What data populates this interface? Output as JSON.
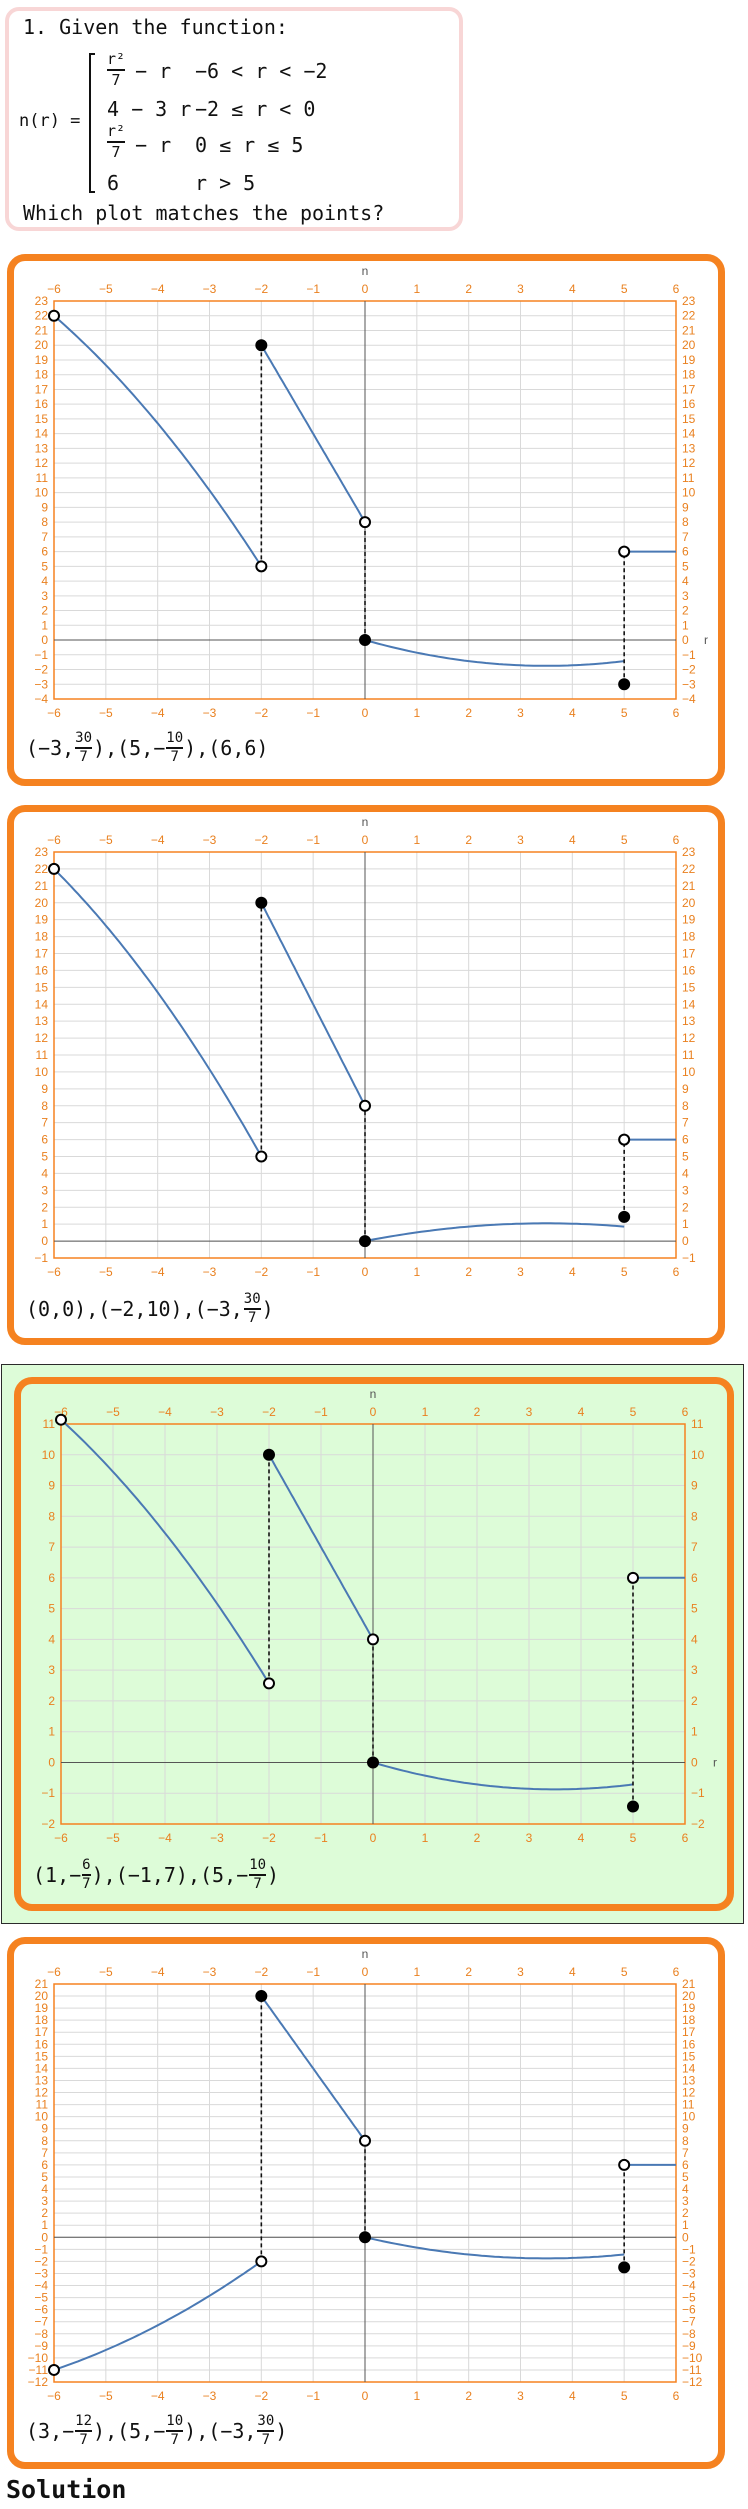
{
  "question": {
    "title": "1. Given the function:",
    "fn_label": "n(r) =",
    "pieces": [
      {
        "expr_num": "r²",
        "expr_den": "7",
        "expr_tail": "− r",
        "cond": "−6 < r < −2"
      },
      {
        "expr": "4 − 3 r",
        "cond": "−2 ≤ r < 0"
      },
      {
        "expr_num": "r²",
        "expr_den": "7",
        "expr_tail": "− r",
        "cond": "0 ≤ r ≤ 5"
      },
      {
        "expr": "6",
        "cond": "r > 5"
      }
    ],
    "prompt": "Which plot matches the points?"
  },
  "options": [
    {
      "id": "A",
      "selected": false,
      "chart_data": {
        "type": "line",
        "title": "",
        "xlabel": "r",
        "ylabel": "n",
        "xlim": [
          -6,
          6
        ],
        "ylim": [
          -4,
          23
        ],
        "xticks": [
          -6,
          -5,
          -4,
          -3,
          -2,
          -1,
          0,
          1,
          2,
          3,
          4,
          5,
          6
        ],
        "yticks": [
          -4,
          -3,
          -2,
          -1,
          0,
          1,
          2,
          3,
          4,
          5,
          6,
          7,
          8,
          9,
          10,
          11,
          12,
          13,
          14,
          15,
          16,
          17,
          18,
          19,
          20,
          21,
          22,
          23
        ],
        "grid": true,
        "segments": [
          {
            "fn": "quad_a",
            "from": -6,
            "to": -2
          },
          {
            "fn": "lin_a",
            "from": -2,
            "to": 0
          },
          {
            "fn": "quad_b",
            "from": 0,
            "to": 5
          },
          {
            "fn": "const6",
            "from": 5,
            "to": 6
          }
        ],
        "points": [
          {
            "x": -6,
            "y": 22,
            "filled": false
          },
          {
            "x": -2,
            "y": 5,
            "filled": false
          },
          {
            "x": -2,
            "y": 20,
            "filled": true
          },
          {
            "x": 0,
            "y": 8,
            "filled": false
          },
          {
            "x": 0,
            "y": 0,
            "filled": true
          },
          {
            "x": 5,
            "y": -3,
            "filled": true
          },
          {
            "x": 5,
            "y": 6,
            "filled": false
          }
        ],
        "jumps": [
          {
            "x": -2,
            "y1": 5,
            "y2": 20
          },
          {
            "x": 0,
            "y1": 0,
            "y2": 8
          },
          {
            "x": 5,
            "y1": -3,
            "y2": 6
          }
        ]
      },
      "answer": [
        {
          "a": "−3",
          "num": "30",
          "den": "7"
        },
        {
          "a": "5",
          "neg": true,
          "num": "10",
          "den": "7"
        },
        {
          "a": "6",
          "b": "6"
        }
      ]
    },
    {
      "id": "B",
      "selected": false,
      "chart_data": {
        "type": "line",
        "title": "",
        "xlabel": "",
        "ylabel": "n",
        "xlim": [
          -6,
          6
        ],
        "ylim": [
          -1,
          23
        ],
        "xticks": [
          -6,
          -5,
          -4,
          -3,
          -2,
          -1,
          0,
          1,
          2,
          3,
          4,
          5,
          6
        ],
        "yticks": [
          -1,
          0,
          1,
          2,
          3,
          4,
          5,
          6,
          7,
          8,
          9,
          10,
          11,
          12,
          13,
          14,
          15,
          16,
          17,
          18,
          19,
          20,
          21,
          22,
          23
        ],
        "grid": true,
        "segments": [
          {
            "fn": "quad_a",
            "from": -6,
            "to": -2
          },
          {
            "fn": "lin_a",
            "from": -2,
            "to": 0
          },
          {
            "fn": "quad_b_neg",
            "from": 0,
            "to": 5
          },
          {
            "fn": "const6",
            "from": 5,
            "to": 6
          }
        ],
        "points": [
          {
            "x": -6,
            "y": 22,
            "filled": false
          },
          {
            "x": -2,
            "y": 5,
            "filled": false
          },
          {
            "x": -2,
            "y": 20,
            "filled": true
          },
          {
            "x": 0,
            "y": 8,
            "filled": false
          },
          {
            "x": 0,
            "y": 0,
            "filled": true
          },
          {
            "x": 5,
            "y": 1.43,
            "filled": true
          },
          {
            "x": 5,
            "y": 6,
            "filled": false
          }
        ],
        "jumps": [
          {
            "x": -2,
            "y1": 5,
            "y2": 20
          },
          {
            "x": 0,
            "y1": 0,
            "y2": 8
          },
          {
            "x": 5,
            "y1": 1.43,
            "y2": 6
          }
        ]
      },
      "answer": [
        {
          "a": "0",
          "b": "0"
        },
        {
          "a": "−2",
          "b": "10"
        },
        {
          "a": "−3",
          "num": "30",
          "den": "7"
        }
      ]
    },
    {
      "id": "C",
      "selected": true,
      "chart_data": {
        "type": "line",
        "title": "",
        "xlabel": "r",
        "ylabel": "n",
        "xlim": [
          -6,
          6
        ],
        "ylim": [
          -2,
          11
        ],
        "xticks": [
          -6,
          -5,
          -4,
          -3,
          -2,
          -1,
          0,
          1,
          2,
          3,
          4,
          5,
          6
        ],
        "yticks": [
          -2,
          -1,
          0,
          1,
          2,
          3,
          4,
          5,
          6,
          7,
          8,
          9,
          10,
          11
        ],
        "grid": true,
        "segments": [
          {
            "fn": "quad_c",
            "from": -6,
            "to": -2
          },
          {
            "fn": "lin_c",
            "from": -2,
            "to": 0
          },
          {
            "fn": "quad_d",
            "from": 0,
            "to": 5
          },
          {
            "fn": "const6",
            "from": 5,
            "to": 6
          }
        ],
        "points": [
          {
            "x": -6,
            "y": 11.14,
            "filled": false
          },
          {
            "x": -2,
            "y": 2.57,
            "filled": false
          },
          {
            "x": -2,
            "y": 10,
            "filled": true
          },
          {
            "x": 0,
            "y": 4,
            "filled": false
          },
          {
            "x": 0,
            "y": 0,
            "filled": true
          },
          {
            "x": 5,
            "y": -1.43,
            "filled": true
          },
          {
            "x": 5,
            "y": 6,
            "filled": false
          }
        ],
        "jumps": [
          {
            "x": -2,
            "y1": 2.57,
            "y2": 10
          },
          {
            "x": 0,
            "y1": 0,
            "y2": 4
          },
          {
            "x": 5,
            "y1": -1.43,
            "y2": 6
          }
        ]
      },
      "answer": [
        {
          "a": "1",
          "neg": true,
          "num": "6",
          "den": "7"
        },
        {
          "a": "−1",
          "b": "7"
        },
        {
          "a": "5",
          "neg": true,
          "num": "10",
          "den": "7"
        }
      ]
    },
    {
      "id": "D",
      "selected": false,
      "chart_data": {
        "type": "line",
        "title": "",
        "xlabel": "",
        "ylabel": "n",
        "xlim": [
          -6,
          6
        ],
        "ylim": [
          -12,
          21
        ],
        "xticks": [
          -6,
          -5,
          -4,
          -3,
          -2,
          -1,
          0,
          1,
          2,
          3,
          4,
          5,
          6
        ],
        "yticks": [
          -12,
          -11,
          -10,
          -9,
          -8,
          -7,
          -6,
          -5,
          -4,
          -3,
          -2,
          -1,
          0,
          1,
          2,
          3,
          4,
          5,
          6,
          7,
          8,
          9,
          10,
          11,
          12,
          13,
          14,
          15,
          16,
          17,
          18,
          19,
          20,
          21
        ],
        "grid": true,
        "segments": [
          {
            "fn": "quad_e",
            "from": -6,
            "to": -2
          },
          {
            "fn": "lin_a",
            "from": -2,
            "to": 0
          },
          {
            "fn": "quad_b",
            "from": 0,
            "to": 5
          },
          {
            "fn": "const6",
            "from": 5,
            "to": 6
          }
        ],
        "points": [
          {
            "x": -6,
            "y": -11,
            "filled": false
          },
          {
            "x": -2,
            "y": -2,
            "filled": false
          },
          {
            "x": -2,
            "y": 20,
            "filled": true
          },
          {
            "x": 0,
            "y": 8,
            "filled": false
          },
          {
            "x": 0,
            "y": 0,
            "filled": true
          },
          {
            "x": 5,
            "y": -2.5,
            "filled": true
          },
          {
            "x": 5,
            "y": 6,
            "filled": false
          }
        ],
        "jumps": [
          {
            "x": -2,
            "y1": -2,
            "y2": 20
          },
          {
            "x": 0,
            "y1": 0,
            "y2": 8
          },
          {
            "x": 5,
            "y1": -2.5,
            "y2": 6
          }
        ]
      },
      "answer": [
        {
          "a": "3",
          "neg": true,
          "num": "12",
          "den": "7"
        },
        {
          "a": "5",
          "neg": true,
          "num": "10",
          "den": "7"
        },
        {
          "a": "−3",
          "num": "30",
          "den": "7"
        }
      ]
    }
  ],
  "colors": {
    "frame": "#f58220",
    "axis_text": "#e9801f",
    "curve": "#4a79b4",
    "grid": "#d9d9d9",
    "selected_bg": "#ddfcd8",
    "question_border": "#f8d6d6"
  },
  "solution_label": "Solution"
}
